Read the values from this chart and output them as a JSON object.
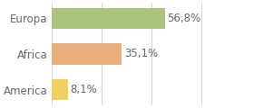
{
  "categories": [
    "America",
    "Africa",
    "Europa"
  ],
  "values": [
    8.1,
    35.1,
    56.8
  ],
  "labels": [
    "8,1%",
    "35,1%",
    "56,8%"
  ],
  "bar_colors": [
    "#f0d060",
    "#e8b07a",
    "#a8c47f"
  ],
  "background_color": "#ffffff",
  "xlim": [
    0,
    100
  ],
  "bar_height": 0.58,
  "label_fontsize": 8.5,
  "tick_fontsize": 8.5,
  "grid_ticks": [
    0,
    25,
    50,
    75,
    100
  ],
  "grid_color": "#cccccc",
  "text_color": "#666666"
}
